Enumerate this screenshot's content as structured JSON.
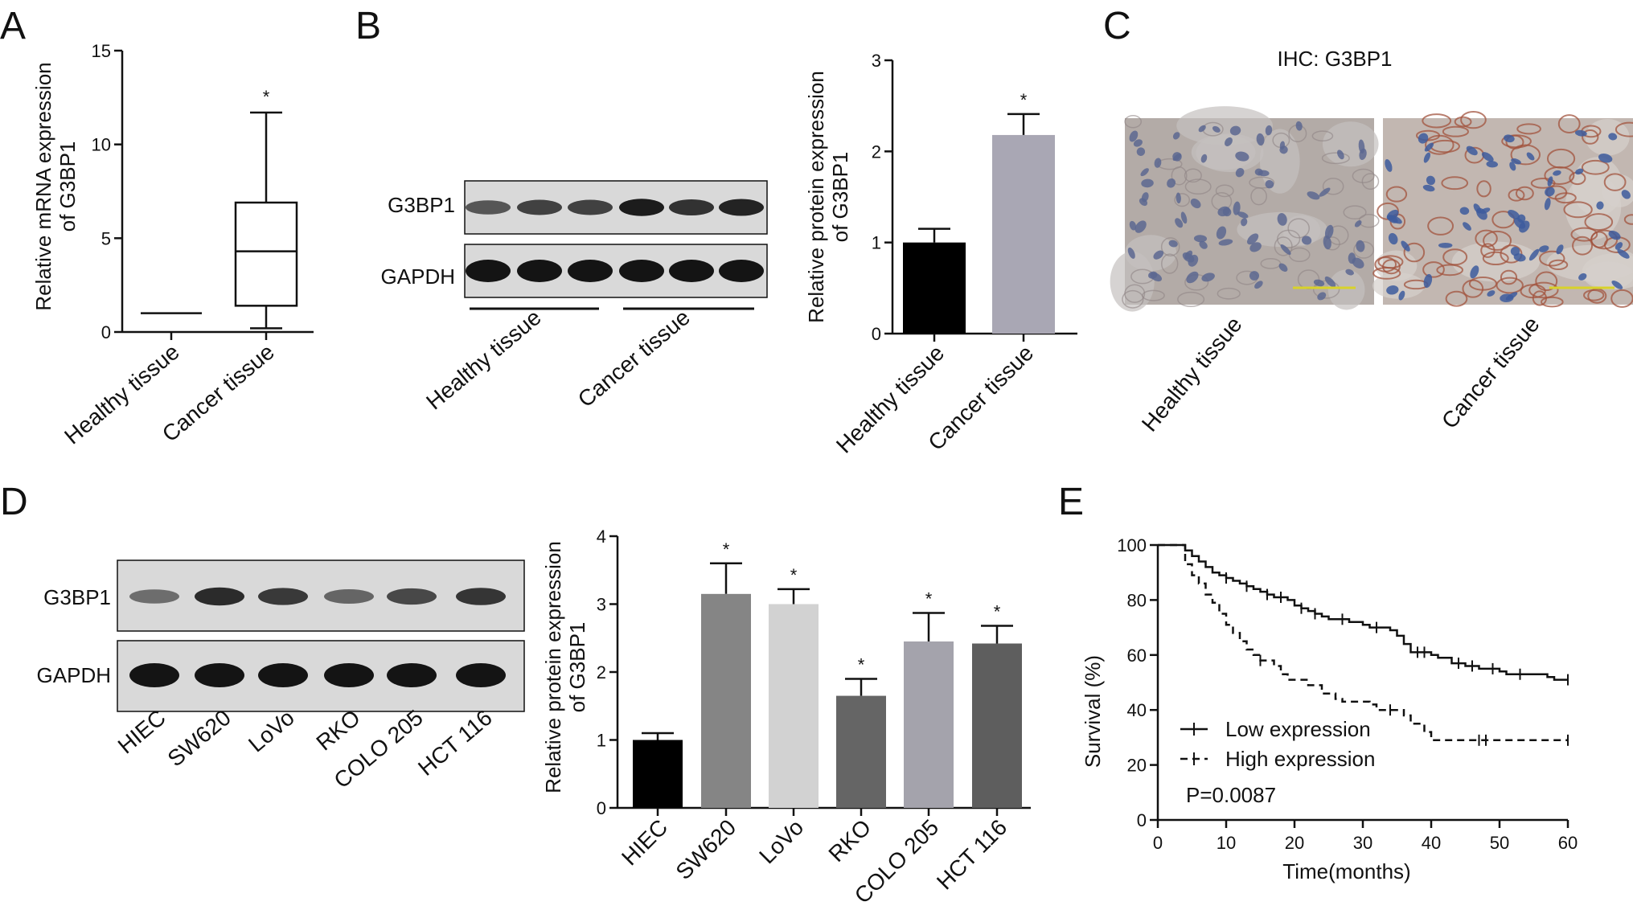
{
  "panels": {
    "A": {
      "letter": "A",
      "chart": {
        "type": "box",
        "ylabel_line1": "Relative mRNA expression",
        "ylabel_line2": "of G3BP1",
        "ylim": [
          0,
          15
        ],
        "yticks": [
          "0",
          "5",
          "10",
          "15"
        ],
        "categories": [
          "Healthy tissue",
          "Cancer tissue"
        ],
        "boxes": [
          {
            "name": "Healthy tissue",
            "min": 1.0,
            "q1": 1.0,
            "median": 1.0,
            "q3": 1.0,
            "max": 1.0,
            "star": ""
          },
          {
            "name": "Cancer tissue",
            "min": 0.2,
            "q1": 1.4,
            "median": 4.3,
            "q3": 6.9,
            "max": 11.7,
            "star": "*"
          }
        ]
      }
    },
    "B": {
      "letter": "B",
      "blot": {
        "rows": [
          "G3BP1",
          "GAPDH"
        ],
        "groups": [
          "Healthy tissue",
          "Cancer tissue"
        ],
        "lanes": 6,
        "g3bp1_intensity": [
          0.55,
          0.7,
          0.7,
          0.95,
          0.8,
          0.9
        ],
        "gapdh_intensity": [
          1,
          1,
          1,
          1,
          1,
          1
        ]
      },
      "chart": {
        "type": "bar",
        "ylabel_line1": "Relative protein expression",
        "ylabel_line2": "of G3BP1",
        "ylim": [
          0,
          3
        ],
        "yticks": [
          "0",
          "1",
          "2",
          "3"
        ],
        "categories": [
          "Healthy tissue",
          "Cancer tissue"
        ],
        "values": [
          1.0,
          2.18
        ],
        "errors": [
          0.15,
          0.23
        ],
        "stars": [
          "",
          "*"
        ],
        "colors": [
          "#000000",
          "#a9a7b4"
        ]
      }
    },
    "C": {
      "letter": "C",
      "title": "IHC: G3BP1",
      "images": [
        "Healthy tissue",
        "Cancer tissue"
      ]
    },
    "D": {
      "letter": "D",
      "blot": {
        "rows": [
          "G3BP1",
          "GAPDH"
        ],
        "lanes": [
          "HIEC",
          "SW620",
          "LoVo",
          "RKO",
          "COLO 205",
          "HCT 116"
        ],
        "g3bp1_intensity": [
          0.4,
          0.85,
          0.75,
          0.45,
          0.65,
          0.78
        ],
        "gapdh_intensity": [
          1,
          1,
          1,
          1,
          1,
          1
        ]
      },
      "chart": {
        "type": "bar",
        "ylabel_line1": "Relative protein expression",
        "ylabel_line2": "of G3BP1",
        "ylim": [
          0,
          4
        ],
        "yticks": [
          "0",
          "1",
          "2",
          "3",
          "4"
        ],
        "categories": [
          "HIEC",
          "SW620",
          "LoVo",
          "RKO",
          "COLO 205",
          "HCT 116"
        ],
        "values": [
          1.0,
          3.15,
          3.0,
          1.65,
          2.45,
          2.42
        ],
        "errors": [
          0.1,
          0.45,
          0.22,
          0.25,
          0.42,
          0.26
        ],
        "stars": [
          "",
          "*",
          "*",
          "*",
          "*",
          "*"
        ],
        "colors": [
          "#000000",
          "#858585",
          "#d2d2d2",
          "#656565",
          "#a4a3ac",
          "#5e5e5e"
        ]
      }
    },
    "E": {
      "letter": "E",
      "chart": {
        "type": "line",
        "ylabel": "Survival (%)",
        "xlabel": "Time(months)",
        "xlim": [
          0,
          60
        ],
        "ylim": [
          0,
          100
        ],
        "xticks": [
          "0",
          "10",
          "20",
          "30",
          "40",
          "50",
          "60"
        ],
        "yticks": [
          "0",
          "20",
          "40",
          "60",
          "80",
          "100"
        ],
        "p_value": "P=0.0087",
        "series": [
          {
            "name": "Low expression",
            "style": "solid",
            "points": [
              [
                0,
                100
              ],
              [
                3,
                100
              ],
              [
                4,
                98
              ],
              [
                5,
                96
              ],
              [
                6,
                94
              ],
              [
                7,
                92
              ],
              [
                8,
                90
              ],
              [
                9,
                89
              ],
              [
                10,
                88
              ],
              [
                11,
                87
              ],
              [
                12,
                86
              ],
              [
                13,
                85
              ],
              [
                14,
                84
              ],
              [
                15,
                83
              ],
              [
                16,
                82
              ],
              [
                17,
                81
              ],
              [
                19,
                80
              ],
              [
                20,
                78
              ],
              [
                21,
                77
              ],
              [
                22,
                76
              ],
              [
                23,
                75
              ],
              [
                24,
                74
              ],
              [
                25,
                73
              ],
              [
                28,
                72
              ],
              [
                30,
                71
              ],
              [
                31,
                70
              ],
              [
                34,
                69
              ],
              [
                35,
                67
              ],
              [
                36,
                64
              ],
              [
                37,
                61
              ],
              [
                40,
                60
              ],
              [
                41,
                59
              ],
              [
                43,
                57
              ],
              [
                45,
                56
              ],
              [
                47,
                55
              ],
              [
                50,
                54
              ],
              [
                51,
                53
              ],
              [
                57,
                52
              ],
              [
                58,
                51
              ],
              [
                60,
                51
              ]
            ],
            "censor_x": [
              10,
              13,
              16,
              18,
              21,
              23,
              27,
              32,
              38,
              39,
              44,
              46,
              49,
              53,
              60
            ]
          },
          {
            "name": "High expression",
            "style": "dashed",
            "points": [
              [
                0,
                100
              ],
              [
                3,
                100
              ],
              [
                4,
                93
              ],
              [
                5,
                89
              ],
              [
                6,
                86
              ],
              [
                7,
                82
              ],
              [
                8,
                79
              ],
              [
                9,
                75
              ],
              [
                10,
                71
              ],
              [
                11,
                68
              ],
              [
                12,
                65
              ],
              [
                13,
                62
              ],
              [
                14,
                60
              ],
              [
                15,
                58
              ],
              [
                16,
                58
              ],
              [
                17,
                56
              ],
              [
                18,
                53
              ],
              [
                19,
                51
              ],
              [
                22,
                49
              ],
              [
                24,
                46
              ],
              [
                26,
                44
              ],
              [
                27,
                43
              ],
              [
                31,
                42
              ],
              [
                32,
                40
              ],
              [
                36,
                38
              ],
              [
                37,
                35
              ],
              [
                39,
                32
              ],
              [
                40,
                29
              ],
              [
                41,
                29
              ],
              [
                60,
                29
              ]
            ],
            "censor_x": [
              15,
              34,
              47,
              48,
              60
            ]
          }
        ]
      }
    }
  }
}
